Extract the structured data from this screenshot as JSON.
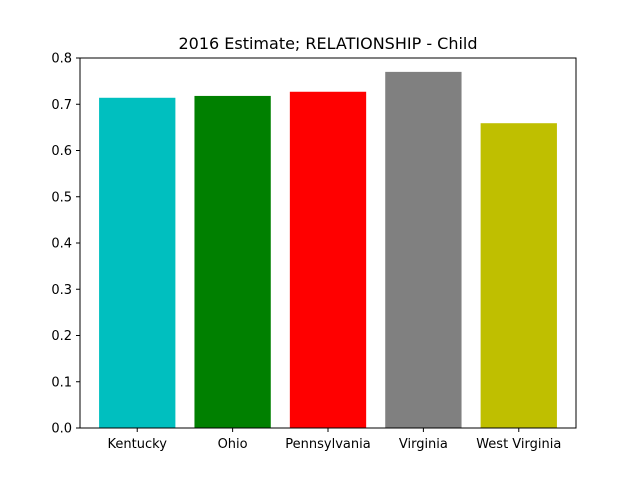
{
  "chart_data": {
    "type": "bar",
    "title": "2016 Estimate; RELATIONSHIP - Child",
    "xlabel": "",
    "ylabel": "",
    "categories": [
      "Kentucky",
      "Ohio",
      "Pennsylvania",
      "Virginia",
      "West Virginia"
    ],
    "values": [
      0.714,
      0.718,
      0.727,
      0.77,
      0.659
    ],
    "colors": [
      "#00bfbf",
      "#008000",
      "#ff0000",
      "#808080",
      "#bfbf00"
    ],
    "ylim": [
      0,
      0.8
    ],
    "yticks": [
      "0.0",
      "0.1",
      "0.2",
      "0.3",
      "0.4",
      "0.5",
      "0.6",
      "0.7",
      "0.8"
    ],
    "ytick_values": [
      0,
      0.1,
      0.2,
      0.3,
      0.4,
      0.5,
      0.6,
      0.7,
      0.8
    ],
    "grid": false,
    "legend": "none"
  }
}
